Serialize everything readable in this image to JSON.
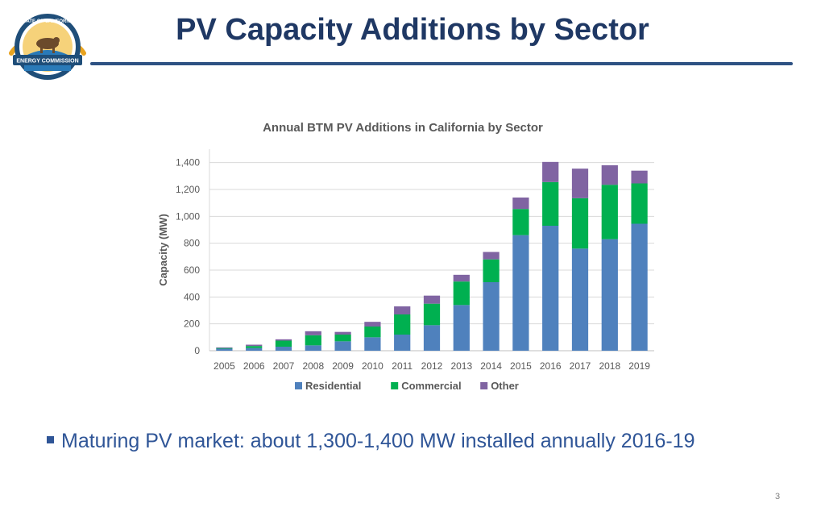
{
  "slide": {
    "title": "PV Capacity Additions by Sector",
    "bullet": "Maturing PV market: about 1,300-1,400 MW installed annually 2016-19",
    "page_number": "3"
  },
  "logo": {
    "top_text": "STATE OF CALIFORNIA",
    "banner_text": "ENERGY COMMISSION"
  },
  "colors": {
    "title": "#1f3864",
    "residential": "#4f81bd",
    "commercial": "#00b050",
    "other": "#8064a2"
  },
  "chart_data": {
    "type": "bar",
    "stacked": true,
    "title": "Annual BTM PV Additions in California by Sector",
    "xlabel": "",
    "ylabel": "Capacity (MW)",
    "ylim": [
      0,
      1500
    ],
    "yticks": [
      0,
      200,
      400,
      600,
      800,
      1000,
      1200,
      1400
    ],
    "ytick_labels": [
      "0",
      "200",
      "400",
      "600",
      "800",
      "1,000",
      "1,200",
      "1,400"
    ],
    "grid": true,
    "legend_position": "bottom",
    "categories": [
      "2005",
      "2006",
      "2007",
      "2008",
      "2009",
      "2010",
      "2011",
      "2012",
      "2013",
      "2014",
      "2015",
      "2016",
      "2017",
      "2018",
      "2019"
    ],
    "series": [
      {
        "name": "Residential",
        "color": "#4f81bd",
        "values": [
          15,
          20,
          30,
          40,
          70,
          100,
          120,
          190,
          340,
          510,
          860,
          930,
          760,
          830,
          945
        ]
      },
      {
        "name": "Commercial",
        "color": "#00b050",
        "values": [
          5,
          15,
          45,
          75,
          50,
          80,
          150,
          160,
          175,
          170,
          195,
          325,
          375,
          405,
          300
        ]
      },
      {
        "name": "Other",
        "color": "#8064a2",
        "values": [
          5,
          10,
          10,
          30,
          20,
          35,
          60,
          60,
          50,
          55,
          85,
          150,
          220,
          145,
          95
        ]
      }
    ]
  }
}
